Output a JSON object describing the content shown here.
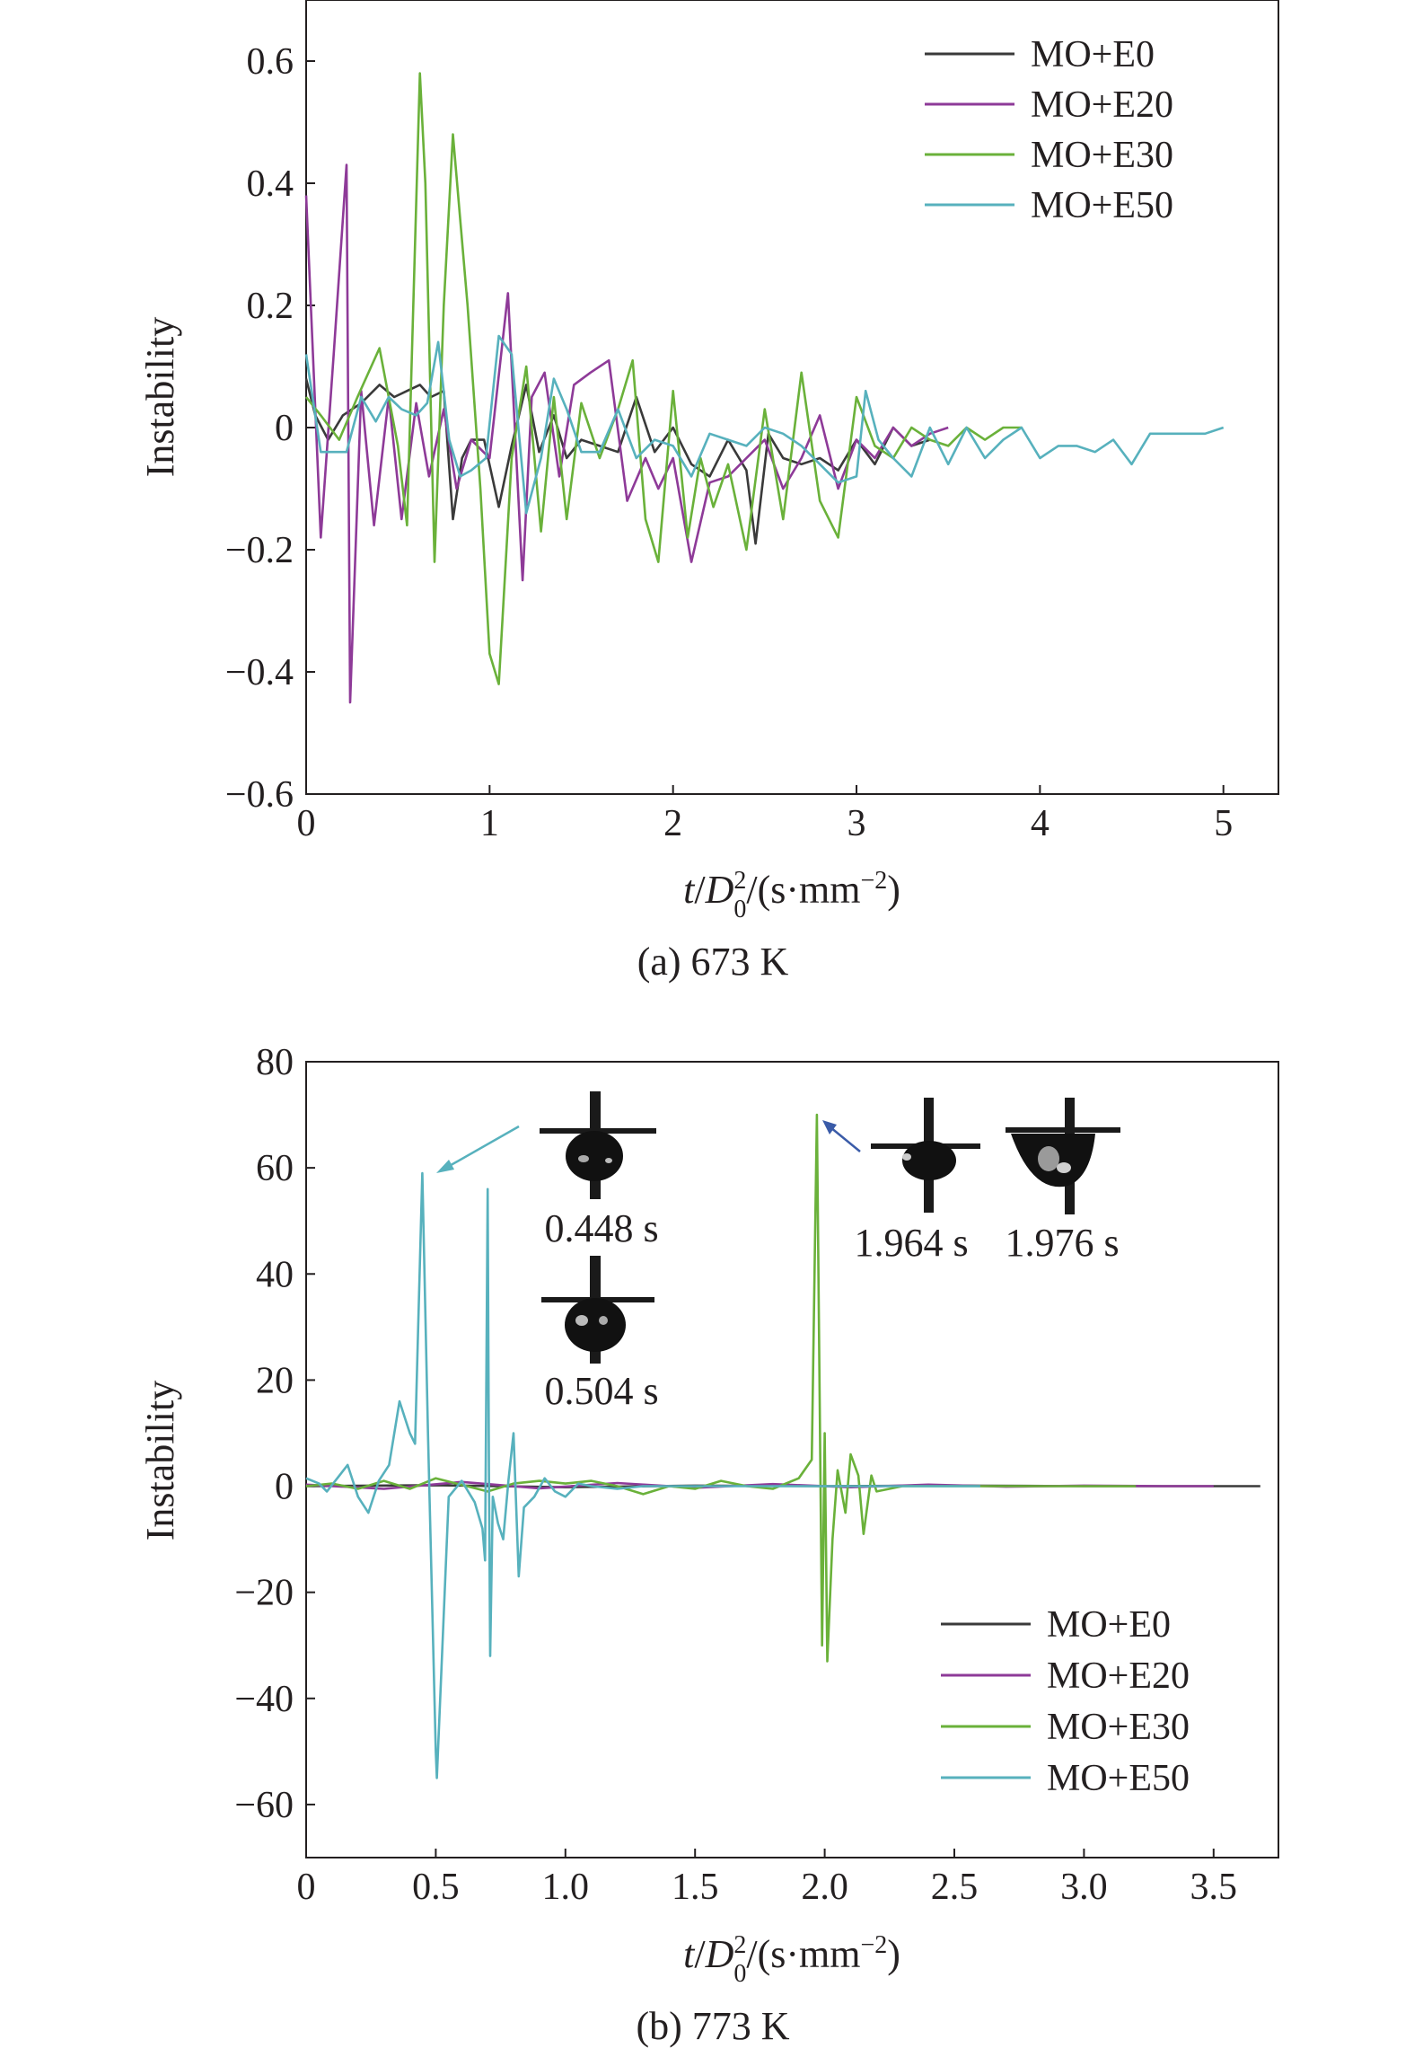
{
  "colors": {
    "MO+E0": "#3a3a3a",
    "MO+E20": "#8e3a98",
    "MO+E30": "#6ab13a",
    "MO+E50": "#57b1bd",
    "axis": "#231f20",
    "arrow_left": "#57b1bd",
    "arrow_right": "#3a5ba8"
  },
  "chart_data": [
    {
      "type": "line",
      "caption": "(a) 673 K",
      "ylabel": "Instability",
      "xlabel": "t/D₀²/(s·mm⁻²)",
      "xlim": [
        0,
        5.3
      ],
      "ylim": [
        -0.6,
        0.7
      ],
      "xticks": [
        0,
        1,
        2,
        3,
        4,
        5
      ],
      "xtick_labels": [
        "0",
        "1",
        "2",
        "3",
        "4",
        "5"
      ],
      "yticks": [
        -0.6,
        -0.4,
        -0.2,
        0,
        0.2,
        0.4,
        0.6
      ],
      "ytick_labels": [
        "−0.6",
        "−0.4",
        "−0.2",
        "0",
        "0.2",
        "0.4",
        "0.6"
      ],
      "legend_position": "top-right",
      "series": [
        {
          "name": "MO+E0",
          "x": [
            0,
            0.05,
            0.12,
            0.2,
            0.3,
            0.4,
            0.48,
            0.55,
            0.62,
            0.68,
            0.75,
            0.8,
            0.85,
            0.9,
            0.97,
            1.05,
            1.12,
            1.2,
            1.27,
            1.35,
            1.42,
            1.5,
            1.6,
            1.7,
            1.8,
            1.9,
            2.0,
            2.1,
            2.2,
            2.3,
            2.4,
            2.45,
            2.52,
            2.6,
            2.7,
            2.8,
            2.9,
            3.0,
            3.1,
            3.2,
            3.3,
            3.4
          ],
          "y": [
            0.08,
            0.02,
            -0.02,
            0.02,
            0.04,
            0.07,
            0.05,
            0.06,
            0.07,
            0.05,
            0.06,
            -0.15,
            -0.05,
            -0.02,
            -0.02,
            -0.13,
            -0.03,
            0.07,
            -0.04,
            0.02,
            -0.05,
            -0.02,
            -0.03,
            -0.04,
            0.05,
            -0.04,
            0.0,
            -0.06,
            -0.08,
            -0.02,
            -0.07,
            -0.19,
            -0.01,
            -0.05,
            -0.06,
            -0.05,
            -0.07,
            -0.02,
            -0.06,
            0.0,
            -0.03,
            -0.02
          ]
        },
        {
          "name": "MO+E20",
          "x": [
            0,
            0.08,
            0.15,
            0.22,
            0.24,
            0.3,
            0.37,
            0.45,
            0.52,
            0.6,
            0.67,
            0.75,
            0.82,
            0.9,
            1.0,
            1.1,
            1.18,
            1.23,
            1.3,
            1.38,
            1.46,
            1.55,
            1.65,
            1.75,
            1.85,
            1.92,
            2.0,
            2.1,
            2.2,
            2.3,
            2.4,
            2.5,
            2.6,
            2.7,
            2.8,
            2.9,
            3.0,
            3.1,
            3.2,
            3.3,
            3.4,
            3.5
          ],
          "y": [
            0.38,
            -0.18,
            0.12,
            0.43,
            -0.45,
            0.06,
            -0.16,
            0.05,
            -0.15,
            0.04,
            -0.08,
            0.03,
            -0.1,
            -0.02,
            -0.05,
            0.22,
            -0.25,
            0.05,
            0.09,
            -0.08,
            0.07,
            0.09,
            0.11,
            -0.12,
            -0.05,
            -0.1,
            -0.05,
            -0.22,
            -0.09,
            -0.08,
            -0.05,
            -0.02,
            -0.1,
            -0.05,
            0.02,
            -0.1,
            -0.02,
            -0.05,
            0.0,
            -0.03,
            -0.01,
            0.0
          ]
        },
        {
          "name": "MO+E30",
          "x": [
            0,
            0.08,
            0.18,
            0.28,
            0.4,
            0.5,
            0.55,
            0.62,
            0.65,
            0.7,
            0.75,
            0.8,
            0.88,
            0.95,
            1.0,
            1.05,
            1.12,
            1.2,
            1.28,
            1.35,
            1.42,
            1.5,
            1.6,
            1.7,
            1.78,
            1.85,
            1.92,
            2.0,
            2.08,
            2.15,
            2.22,
            2.3,
            2.4,
            2.5,
            2.6,
            2.7,
            2.8,
            2.9,
            3.0,
            3.1,
            3.2,
            3.3,
            3.4,
            3.5,
            3.6,
            3.7,
            3.8,
            3.9
          ],
          "y": [
            0.05,
            0.02,
            -0.02,
            0.05,
            0.13,
            -0.03,
            -0.16,
            0.58,
            0.4,
            -0.22,
            0.2,
            0.48,
            0.2,
            -0.1,
            -0.37,
            -0.42,
            -0.05,
            0.1,
            -0.17,
            0.05,
            -0.15,
            0.04,
            -0.05,
            0.03,
            0.11,
            -0.15,
            -0.22,
            0.06,
            -0.18,
            -0.05,
            -0.13,
            -0.06,
            -0.2,
            0.03,
            -0.15,
            0.09,
            -0.12,
            -0.18,
            0.05,
            -0.03,
            -0.05,
            0.0,
            -0.02,
            -0.03,
            0.0,
            -0.02,
            0.0,
            0.0
          ]
        },
        {
          "name": "MO+E50",
          "x": [
            0,
            0.08,
            0.15,
            0.22,
            0.3,
            0.38,
            0.45,
            0.52,
            0.6,
            0.66,
            0.72,
            0.78,
            0.84,
            0.9,
            0.98,
            1.05,
            1.12,
            1.2,
            1.28,
            1.35,
            1.42,
            1.5,
            1.6,
            1.7,
            1.8,
            1.9,
            2.0,
            2.1,
            2.2,
            2.3,
            2.4,
            2.5,
            2.6,
            2.7,
            2.8,
            2.9,
            3.0,
            3.05,
            3.12,
            3.2,
            3.3,
            3.4,
            3.5,
            3.6,
            3.7,
            3.8,
            3.9,
            4.0,
            4.1,
            4.2,
            4.3,
            4.4,
            4.5,
            4.6,
            4.7,
            4.8,
            4.9,
            5.0
          ],
          "y": [
            0.12,
            -0.04,
            -0.04,
            -0.04,
            0.05,
            0.01,
            0.05,
            0.03,
            0.02,
            0.04,
            0.14,
            -0.02,
            -0.08,
            -0.07,
            -0.05,
            0.15,
            0.12,
            -0.14,
            -0.05,
            0.08,
            0.03,
            -0.04,
            -0.04,
            0.03,
            -0.05,
            -0.02,
            -0.03,
            -0.08,
            -0.01,
            -0.02,
            -0.03,
            0.0,
            -0.01,
            -0.03,
            -0.06,
            -0.09,
            -0.08,
            0.06,
            -0.02,
            -0.05,
            -0.08,
            0.0,
            -0.06,
            0.0,
            -0.05,
            -0.02,
            0.0,
            -0.05,
            -0.03,
            -0.03,
            -0.04,
            -0.02,
            -0.06,
            -0.01,
            -0.01,
            -0.01,
            -0.01,
            0.0
          ]
        }
      ]
    },
    {
      "type": "line",
      "caption": "(b) 773 K",
      "ylabel": "Instability",
      "xlabel": "t/D₀²/(s·mm⁻²)",
      "xlim": [
        0,
        3.75
      ],
      "ylim": [
        -70,
        80
      ],
      "xticks": [
        0,
        0.5,
        1.0,
        1.5,
        2.0,
        2.5,
        3.0,
        3.5
      ],
      "xtick_labels": [
        "0",
        "0.5",
        "1.0",
        "1.5",
        "2.0",
        "2.5",
        "3.0",
        "3.5"
      ],
      "yticks": [
        -60,
        -40,
        -20,
        0,
        20,
        40,
        60,
        80
      ],
      "ytick_labels": [
        "−60",
        "−40",
        "−20",
        "0",
        "20",
        "40",
        "60",
        "80"
      ],
      "legend_position": "bottom-right",
      "annotations": {
        "label_0448": "0.448 s",
        "label_0504": "0.504 s",
        "label_1964": "1.964 s",
        "label_1976": "1.976 s"
      },
      "series": [
        {
          "name": "MO+E0",
          "x": [
            0,
            0.5,
            1.0,
            1.5,
            2.0,
            2.5,
            3.0,
            3.5,
            3.68
          ],
          "y": [
            0,
            0.2,
            -0.2,
            0.1,
            0,
            0.1,
            0,
            0,
            0
          ]
        },
        {
          "name": "MO+E20",
          "x": [
            0,
            0.3,
            0.6,
            0.9,
            1.2,
            1.5,
            1.8,
            2.1,
            2.4,
            2.7,
            3.0,
            3.3,
            3.5
          ],
          "y": [
            0.3,
            -0.5,
            0.8,
            -0.4,
            0.6,
            -0.3,
            0.4,
            -0.2,
            0.3,
            -0.1,
            0.1,
            0,
            0
          ]
        },
        {
          "name": "MO+E30",
          "x": [
            0,
            0.1,
            0.2,
            0.3,
            0.4,
            0.5,
            0.58,
            0.7,
            0.8,
            0.9,
            1.0,
            1.1,
            1.2,
            1.3,
            1.4,
            1.5,
            1.6,
            1.7,
            1.8,
            1.9,
            1.95,
            1.97,
            1.99,
            2.0,
            2.01,
            2.03,
            2.05,
            2.08,
            2.1,
            2.13,
            2.15,
            2.18,
            2.2,
            2.3,
            2.5,
            2.8,
            3.0,
            3.2
          ],
          "y": [
            0,
            0.5,
            -0.5,
            1.0,
            -0.5,
            1.5,
            0.5,
            -1.0,
            0.5,
            1.0,
            0.5,
            1.0,
            0,
            -1.5,
            0,
            -0.5,
            1.0,
            0,
            -0.5,
            1.5,
            5,
            70,
            -30,
            10,
            -33,
            -10,
            3,
            -5,
            6,
            2,
            -9,
            2,
            -1,
            0,
            0,
            0,
            0,
            0
          ]
        },
        {
          "name": "MO+E50",
          "x": [
            0,
            0.05,
            0.08,
            0.12,
            0.16,
            0.2,
            0.24,
            0.28,
            0.32,
            0.36,
            0.4,
            0.42,
            0.448,
            0.47,
            0.5,
            0.504,
            0.55,
            0.6,
            0.65,
            0.68,
            0.69,
            0.7,
            0.705,
            0.71,
            0.72,
            0.74,
            0.76,
            0.78,
            0.8,
            0.82,
            0.84,
            0.88,
            0.92,
            0.96,
            1.0,
            1.05,
            1.1,
            1.2,
            1.3,
            1.5,
            1.7,
            2.0,
            2.3,
            2.6
          ],
          "y": [
            1.5,
            0.5,
            -1,
            1.5,
            4,
            -2,
            -5,
            1,
            4,
            16,
            10,
            8,
            59,
            10,
            -50,
            -55,
            -2,
            1,
            -3,
            -8,
            -14,
            56,
            3,
            -32,
            -2,
            -7,
            -10,
            1,
            10,
            -17,
            -4,
            -2,
            1.5,
            -1,
            -2,
            0.5,
            0,
            -0.5,
            0,
            0,
            0,
            0,
            0,
            0
          ]
        }
      ]
    }
  ]
}
